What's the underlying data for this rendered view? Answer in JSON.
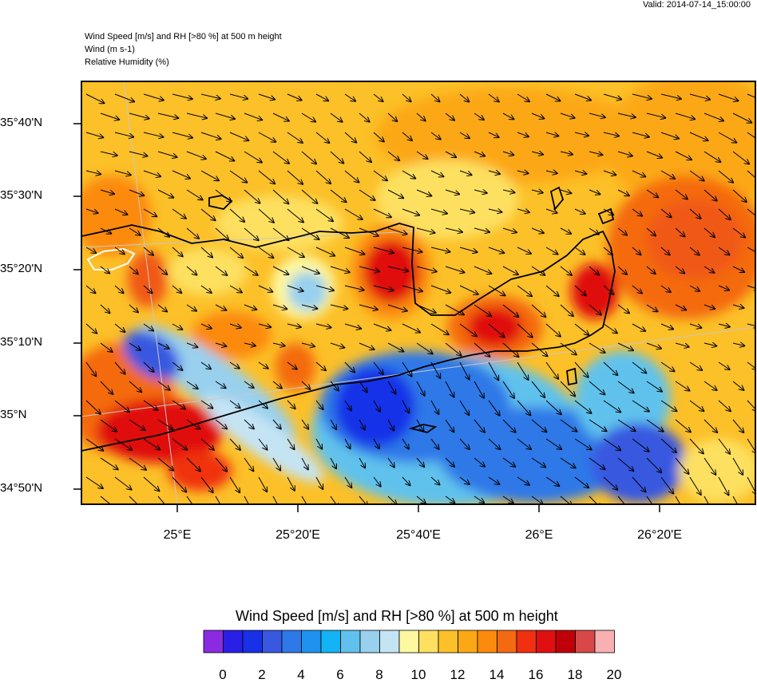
{
  "valid_time": "Valid: 2014-07-14_15:00:00",
  "header": {
    "line1": "Wind Speed [m/s] and RH [>80 %] at 500 m height",
    "line2": "Wind   (m s-1)",
    "line3": "Relative Humidity   (%)"
  },
  "lat_labels": [
    "35°40'N",
    "35°30'N",
    "35°20'N",
    "35°10'N",
    "35°N",
    "34°50'N"
  ],
  "lon_labels": [
    "25°E",
    "25°20'E",
    "25°40'E",
    "26°E",
    "26°20'E"
  ],
  "colorbar": {
    "title": "Wind Speed [m/s] and RH [>80 %] at 500 m height",
    "tick_labels": [
      "0",
      "2",
      "4",
      "6",
      "8",
      "10",
      "12",
      "14",
      "16",
      "18",
      "20"
    ],
    "colors": [
      "#8a2be2",
      "#2a1fe6",
      "#1730e8",
      "#3858e0",
      "#2f78e8",
      "#1f92f0",
      "#12b4f5",
      "#60c2ec",
      "#98d0ee",
      "#c4e4f4",
      "#fef8a0",
      "#fde060",
      "#fcc028",
      "#fca814",
      "#fc8a0c",
      "#f46a10",
      "#f03010",
      "#e01010",
      "#c00008",
      "#d84848",
      "#f8b0b0"
    ]
  },
  "wind_direction": "northwest",
  "colors": {
    "coastline": "#000000",
    "rh_contour": "#ffffff",
    "graticule": "#c8c8c8"
  }
}
